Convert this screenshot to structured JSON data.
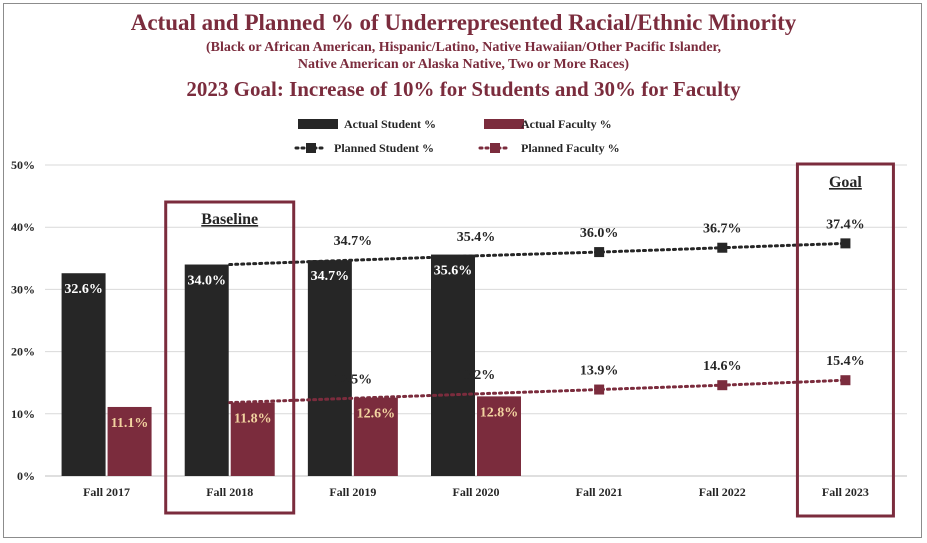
{
  "titles": {
    "main": "Actual and Planned % of Underrepresented Racial/Ethnic Minority",
    "sub_line1": "(Black or African American, Hispanic/Latino, Native Hawaiian/Other Pacific Islander,",
    "sub_line2": "Native American or Alaska Native, Two or More Races)",
    "goal_line": "2023 Goal: Increase of 10% for Students and 30% for Faculty"
  },
  "colors": {
    "title": "#7b2c3d",
    "student_bar": "#262626",
    "faculty_bar": "#7b2c3d",
    "faculty_label": "#f2d3a0",
    "box": "#7b2c3d",
    "grid": "#d9d9d9"
  },
  "annotations": {
    "baseline": "Baseline",
    "goal": "Goal"
  },
  "chart_data": {
    "type": "bar",
    "title": "Actual and Planned % of Underrepresented Racial/Ethnic Minority",
    "categories": [
      "Fall 2017",
      "Fall 2018",
      "Fall 2019",
      "Fall 2020",
      "Fall 2021",
      "Fall 2022",
      "Fall 2023"
    ],
    "ylim": [
      0,
      50
    ],
    "yticks": [
      0,
      10,
      20,
      30,
      40,
      50
    ],
    "ytick_labels": [
      "0%",
      "10%",
      "20%",
      "30%",
      "40%",
      "50%"
    ],
    "grid": true,
    "legend_position": "top",
    "series": [
      {
        "name": "Actual Student %",
        "kind": "bar",
        "values": [
          32.6,
          34.0,
          34.7,
          35.6,
          null,
          null,
          null
        ],
        "labels": [
          "32.6%",
          "34.0%",
          "34.7%",
          "35.6%",
          null,
          null,
          null
        ]
      },
      {
        "name": "Actual Faculty %",
        "kind": "bar",
        "values": [
          11.1,
          11.8,
          12.6,
          12.8,
          null,
          null,
          null
        ],
        "labels": [
          "11.1%",
          "11.8%",
          "12.6%",
          "12.8%",
          null,
          null,
          null
        ]
      },
      {
        "name": "Planned Student %",
        "kind": "line",
        "values": [
          null,
          34.0,
          34.7,
          35.4,
          36.0,
          36.7,
          37.4
        ],
        "labels": [
          null,
          null,
          "34.7%",
          "35.4%",
          "36.0%",
          "36.7%",
          "37.4%"
        ]
      },
      {
        "name": "Planned Faculty %",
        "kind": "line",
        "values": [
          null,
          11.8,
          12.5,
          13.2,
          13.9,
          14.6,
          15.4
        ],
        "labels": [
          null,
          null,
          "12.5%",
          "13.2%",
          "13.9%",
          "14.6%",
          "15.4%"
        ]
      }
    ]
  }
}
